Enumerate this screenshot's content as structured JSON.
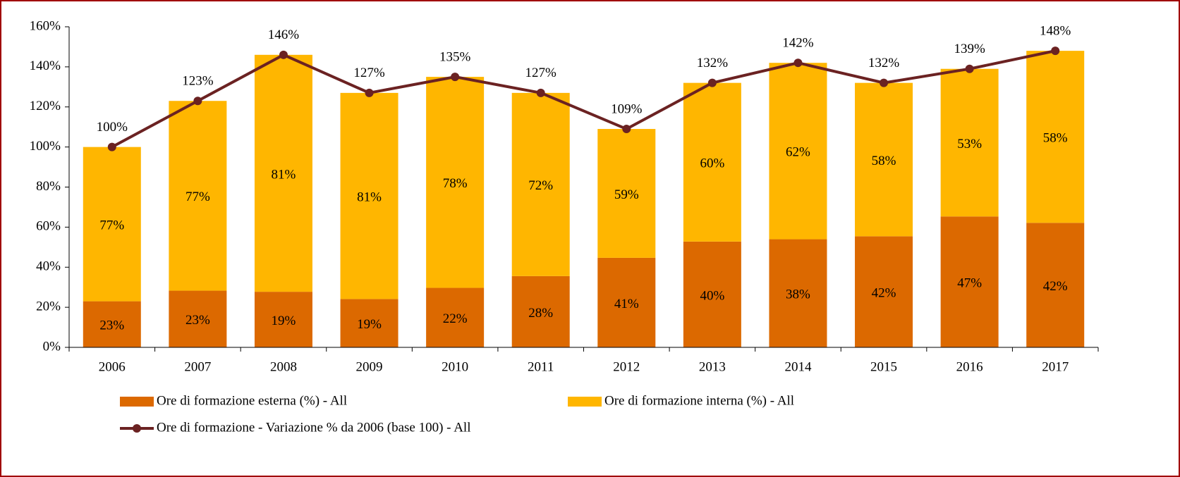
{
  "chart_data": {
    "type": "bar",
    "stacked": true,
    "categories": [
      "2006",
      "2007",
      "2008",
      "2009",
      "2010",
      "2011",
      "2012",
      "2013",
      "2014",
      "2015",
      "2016",
      "2017"
    ],
    "series": [
      {
        "name": "Ore di formazione esterna (%) - All",
        "type": "bar",
        "color": "#dc6900",
        "values": [
          23,
          23,
          19,
          19,
          22,
          28,
          41,
          40,
          38,
          42,
          47,
          42
        ],
        "value_labels": [
          "23%",
          "23%",
          "19%",
          "19%",
          "22%",
          "28%",
          "41%",
          "40%",
          "38%",
          "42%",
          "47%",
          "42%"
        ]
      },
      {
        "name": "Ore di formazione interna (%) - All",
        "type": "bar",
        "color": "#ffb600",
        "values": [
          77,
          77,
          81,
          81,
          78,
          72,
          59,
          60,
          62,
          58,
          53,
          58
        ],
        "value_labels": [
          "77%",
          "77%",
          "81%",
          "81%",
          "78%",
          "72%",
          "59%",
          "60%",
          "62%",
          "58%",
          "53%",
          "58%"
        ]
      },
      {
        "name": "Ore di formazione - Variazione % da 2006 (base 100) - All",
        "type": "line",
        "color": "#6b2222",
        "values": [
          100,
          123,
          146,
          127,
          135,
          127,
          109,
          132,
          142,
          132,
          139,
          148
        ],
        "value_labels": [
          "100%",
          "123%",
          "146%",
          "127%",
          "135%",
          "127%",
          "109%",
          "132%",
          "142%",
          "132%",
          "139%",
          "148%"
        ]
      }
    ],
    "ylim": [
      0,
      160
    ],
    "yticks": [
      {
        "value": 0,
        "label": "0%"
      },
      {
        "value": 20,
        "label": "20%"
      },
      {
        "value": 40,
        "label": "40%"
      },
      {
        "value": 60,
        "label": "60%"
      },
      {
        "value": 80,
        "label": "80%"
      },
      {
        "value": 100,
        "label": "100%"
      },
      {
        "value": 120,
        "label": "120%"
      },
      {
        "value": 140,
        "label": "140%"
      },
      {
        "value": 160,
        "label": "160%"
      }
    ],
    "grid": false
  }
}
